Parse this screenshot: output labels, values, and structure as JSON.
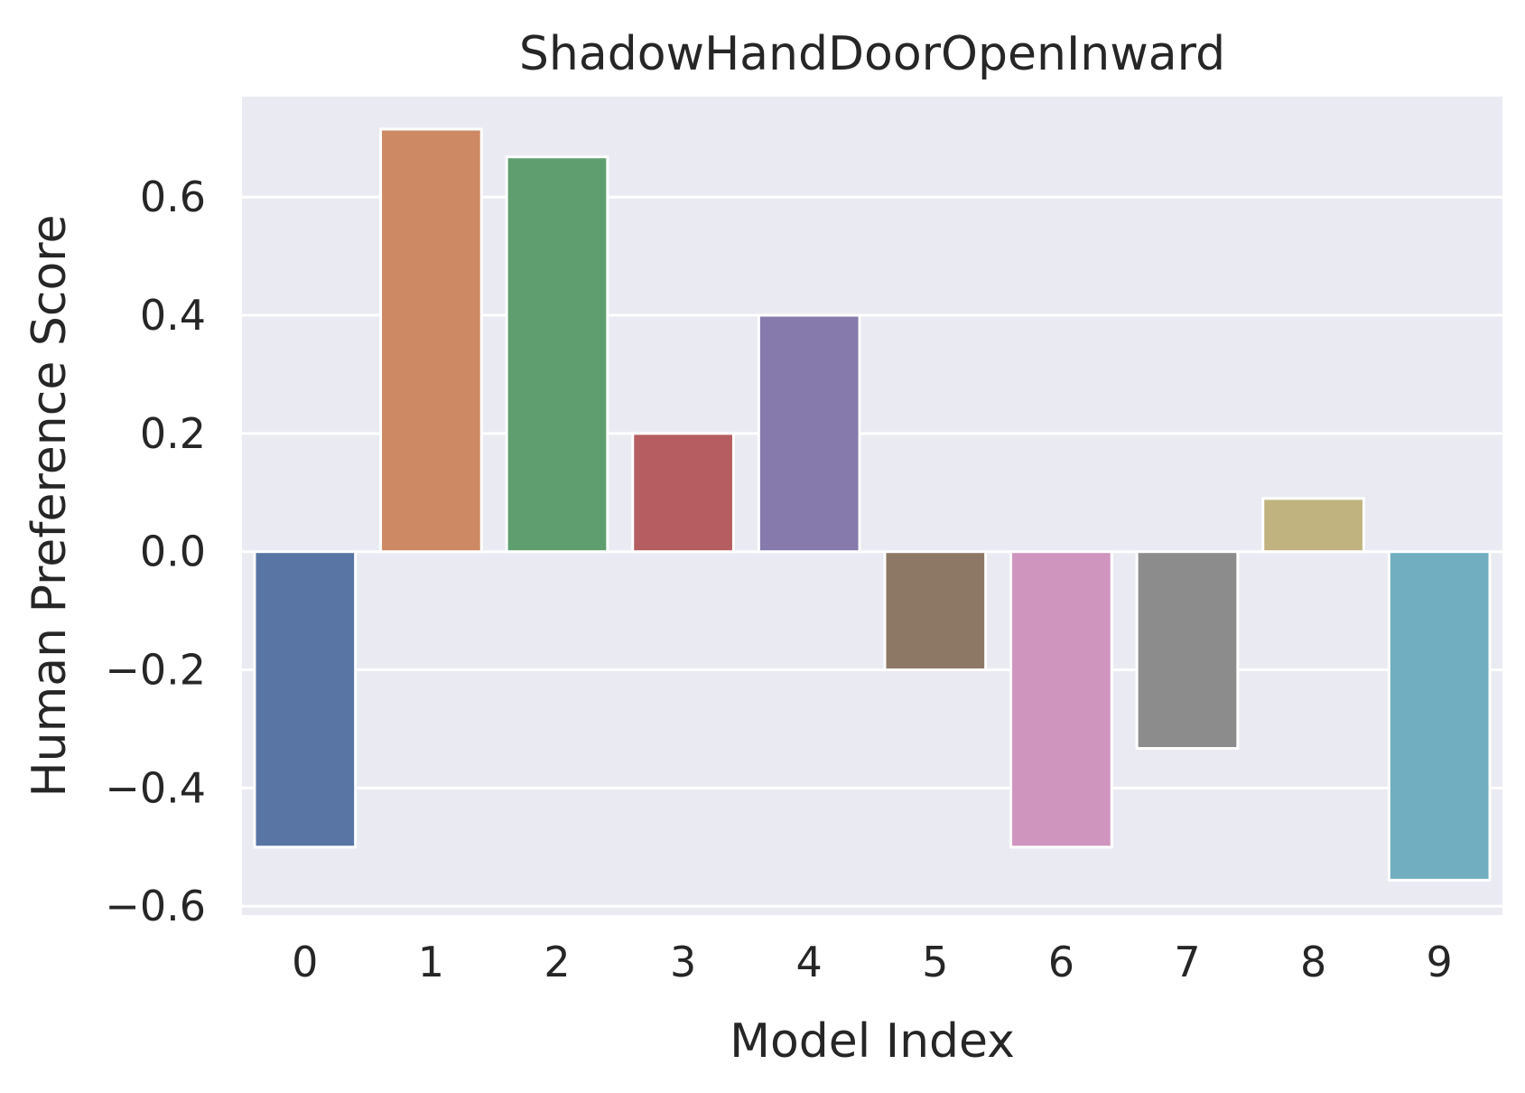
{
  "chart_data": {
    "type": "bar",
    "title": "ShadowHandDoorOpenInward",
    "xlabel": "Model Index",
    "ylabel": "Human Preference Score",
    "categories": [
      "0",
      "1",
      "2",
      "3",
      "4",
      "5",
      "6",
      "7",
      "8",
      "9"
    ],
    "values": [
      -0.5,
      0.715,
      0.668,
      0.2,
      0.4,
      -0.2,
      -0.5,
      -0.333,
      0.09,
      -0.556
    ],
    "colors": [
      "#5975a4",
      "#cc8963",
      "#5f9e6e",
      "#b55d60",
      "#857aab",
      "#8d7866",
      "#d095bf",
      "#8c8c8c",
      "#c1b37f",
      "#71aec0"
    ],
    "yticks": [
      -0.6,
      -0.4,
      -0.2,
      0.0,
      0.2,
      0.4,
      0.6
    ],
    "ytick_labels": [
      "−0.6",
      "−0.4",
      "−0.2",
      "0.0",
      "0.2",
      "0.4",
      "0.6"
    ],
    "ylim": [
      -0.615,
      0.77
    ],
    "grid": true,
    "background": "#eaeaf2",
    "grid_color": "#ffffff",
    "text_color": "#262626"
  }
}
